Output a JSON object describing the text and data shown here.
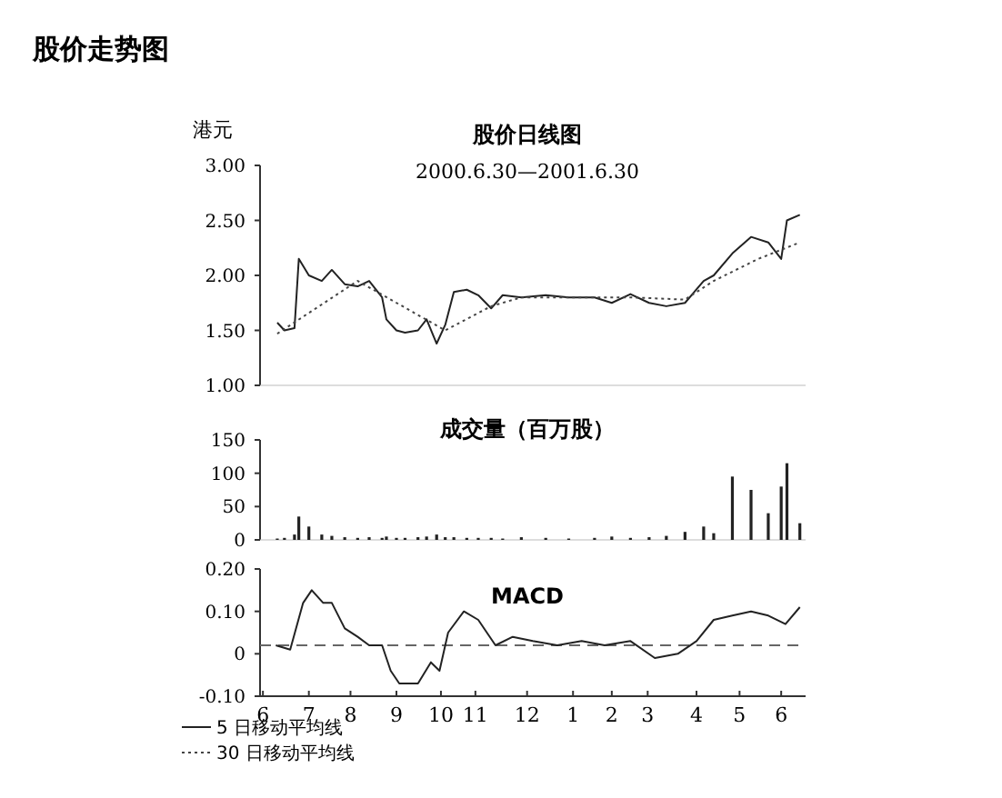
{
  "chart_data": [
    {
      "type": "line",
      "title": "股价日线图",
      "subtitle": "2000.6.30—2001.6.30",
      "ylabel": "港元",
      "annotations": [
        "股价走势图"
      ],
      "tick_labels": "y",
      "legend": "bottom left",
      "grid": false,
      "xlim": [
        "2000-06-19",
        "2001-07-04"
      ],
      "ylim": [
        1,
        3
      ],
      "yticks": [
        {
          "value": 1,
          "label": "1.00"
        },
        {
          "value": 1.5,
          "label": "1.50"
        },
        {
          "value": 2,
          "label": "2.00"
        },
        {
          "value": 2.5,
          "label": "2.50"
        },
        {
          "value": 3,
          "label": "3.00"
        }
      ],
      "series": [
        {
          "name": "5 日移动平均线",
          "color": "#222222",
          "line_style": "solid",
          "x": [
            "2000-07-01",
            "2000-07-06",
            "2000-07-13",
            "2000-07-16",
            "2000-07-23",
            "2000-08-01",
            "2000-08-08",
            "2000-08-17",
            "2000-08-26",
            "2000-09-03",
            "2000-09-12",
            "2000-09-15",
            "2000-09-22",
            "2000-09-28",
            "2000-10-07",
            "2000-10-13",
            "2000-10-20",
            "2000-10-26",
            "2000-11-01",
            "2000-11-10",
            "2000-11-18",
            "2000-11-27",
            "2000-12-05",
            "2000-12-18",
            "2001-01-04",
            "2001-01-20",
            "2001-02-07",
            "2001-02-19",
            "2001-03-04",
            "2001-03-17",
            "2001-03-29",
            "2001-04-11",
            "2001-04-24",
            "2001-05-01",
            "2001-05-14",
            "2001-05-27",
            "2001-06-08",
            "2001-06-17",
            "2001-06-21",
            "2001-06-30"
          ],
          "values": [
            1.57,
            1.5,
            1.52,
            2.15,
            2.0,
            1.95,
            2.05,
            1.92,
            1.9,
            1.95,
            1.8,
            1.6,
            1.5,
            1.48,
            1.5,
            1.6,
            1.38,
            1.55,
            1.85,
            1.87,
            1.82,
            1.7,
            1.82,
            1.8,
            1.82,
            1.8,
            1.8,
            1.75,
            1.83,
            1.75,
            1.72,
            1.75,
            1.95,
            2.0,
            2.2,
            2.35,
            2.3,
            2.15,
            2.5,
            2.55
          ]
        },
        {
          "name": "30 日移动平均线",
          "color": "#444444",
          "line_style": "dotted",
          "x": [
            "2000-07-01",
            "2000-08-26",
            "2000-10-26",
            "2000-11-27",
            "2000-12-18",
            "2001-03-04",
            "2001-04-11",
            "2001-05-01",
            "2001-06-01",
            "2001-06-30"
          ],
          "values": [
            1.47,
            1.95,
            1.5,
            1.72,
            1.8,
            1.8,
            1.78,
            1.95,
            2.15,
            2.3
          ]
        }
      ]
    },
    {
      "type": "bar",
      "title": "成交量（百万股）",
      "tick_labels": "y",
      "grid": false,
      "xlim": [
        "2000-06-19",
        "2001-07-04"
      ],
      "ylim": [
        0,
        150
      ],
      "yticks": [
        0,
        50,
        100,
        150
      ],
      "series": [
        {
          "color": "#222222",
          "x": [
            "2000-07-01",
            "2000-07-06",
            "2000-07-13",
            "2000-07-16",
            "2000-07-23",
            "2000-08-01",
            "2000-08-08",
            "2000-08-17",
            "2000-08-26",
            "2000-09-03",
            "2000-09-12",
            "2000-09-15",
            "2000-09-22",
            "2000-09-28",
            "2000-10-07",
            "2000-10-13",
            "2000-10-20",
            "2000-10-26",
            "2000-11-01",
            "2000-11-10",
            "2000-11-18",
            "2000-11-27",
            "2000-12-05",
            "2000-12-18",
            "2001-01-04",
            "2001-01-20",
            "2001-02-07",
            "2001-02-19",
            "2001-03-04",
            "2001-03-17",
            "2001-03-29",
            "2001-04-11",
            "2001-04-24",
            "2001-05-01",
            "2001-05-14",
            "2001-05-27",
            "2001-06-08",
            "2001-06-17",
            "2001-06-21",
            "2001-06-30"
          ],
          "values": [
            2,
            3,
            8,
            35,
            20,
            8,
            6,
            4,
            3,
            4,
            3,
            5,
            3,
            3,
            4,
            5,
            8,
            4,
            4,
            3,
            3,
            3,
            2,
            4,
            3,
            2,
            3,
            5,
            3,
            4,
            6,
            12,
            20,
            10,
            95,
            75,
            40,
            80,
            115,
            25
          ]
        }
      ]
    },
    {
      "type": "line",
      "title": "MACD",
      "grid": false,
      "xlim": [
        "2000-06-19",
        "2001-07-04"
      ],
      "ylim": [
        -0.1,
        0.2
      ],
      "yticks": [
        {
          "value": -0.1,
          "label": "-0.10"
        },
        {
          "value": 0,
          "label": "0"
        },
        {
          "value": 0.1,
          "label": "0.10"
        },
        {
          "value": 0.2,
          "label": "0.20"
        }
      ],
      "xticks": [
        {
          "value": "2000-06-21",
          "label": "6"
        },
        {
          "value": "2000-07-23",
          "label": "7"
        },
        {
          "value": "2000-08-21",
          "label": "8"
        },
        {
          "value": "2000-09-22",
          "label": "9"
        },
        {
          "value": "2000-10-23",
          "label": "10"
        },
        {
          "value": "2000-11-16",
          "label": "11"
        },
        {
          "value": "2000-12-22",
          "label": "12"
        },
        {
          "value": "2001-01-23",
          "label": "1"
        },
        {
          "value": "2001-02-19",
          "label": "2"
        },
        {
          "value": "2001-03-16",
          "label": "3"
        },
        {
          "value": "2001-04-19",
          "label": "4"
        },
        {
          "value": "2001-05-19",
          "label": "5"
        },
        {
          "value": "2001-06-17",
          "label": "6"
        }
      ],
      "ref_lines": [
        {
          "axis": "y",
          "value": 0.02,
          "line_style": "dashed",
          "color": "#666666"
        }
      ],
      "series": [
        {
          "color": "#222222",
          "x": [
            "2000-06-30",
            "2000-07-10",
            "2000-07-19",
            "2000-07-25",
            "2000-08-02",
            "2000-08-08",
            "2000-08-17",
            "2000-08-26",
            "2000-09-03",
            "2000-09-12",
            "2000-09-18",
            "2000-09-24",
            "2000-10-01",
            "2000-10-07",
            "2000-10-16",
            "2000-10-22",
            "2000-10-28",
            "2000-11-08",
            "2000-11-18",
            "2000-11-30",
            "2000-12-12",
            "2000-12-26",
            "2001-01-12",
            "2001-01-29",
            "2001-02-14",
            "2001-03-04",
            "2001-03-21",
            "2001-04-06",
            "2001-04-19",
            "2001-05-01",
            "2001-05-14",
            "2001-05-27",
            "2001-06-08",
            "2001-06-20",
            "2001-06-30"
          ],
          "values": [
            0.02,
            0.01,
            0.12,
            0.15,
            0.12,
            0.12,
            0.06,
            0.04,
            0.02,
            0.02,
            -0.04,
            -0.07,
            -0.07,
            -0.07,
            -0.02,
            -0.04,
            0.05,
            0.1,
            0.08,
            0.02,
            0.04,
            0.03,
            0.02,
            0.03,
            0.02,
            0.03,
            -0.01,
            0,
            0.03,
            0.08,
            0.09,
            0.1,
            0.09,
            0.07,
            0.11
          ]
        }
      ]
    }
  ]
}
